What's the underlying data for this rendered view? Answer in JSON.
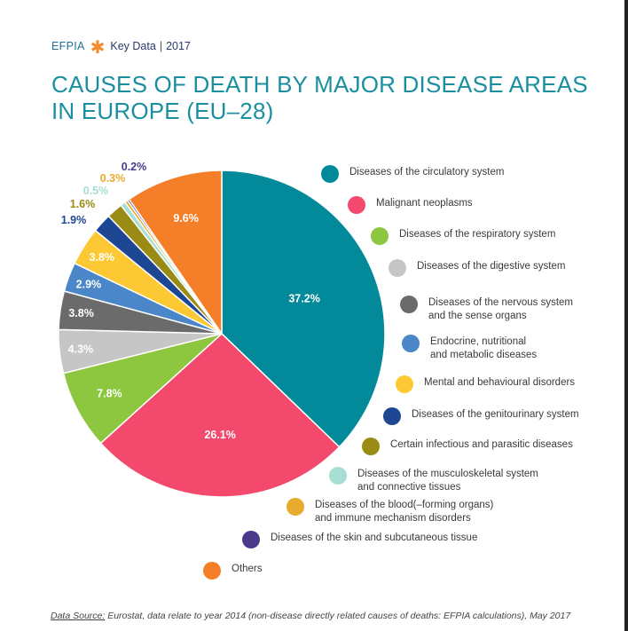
{
  "header": {
    "brand": "EFPIA",
    "publication": "Key Data",
    "separator": "|",
    "year": "2017",
    "accent_color": "#f28c2c"
  },
  "title": {
    "line1": "CAUSES OF DEATH BY MAJOR DISEASE AREAS",
    "line2": "IN EUROPE (EU–28)"
  },
  "chart_data": {
    "type": "pie",
    "title": "CAUSES OF DEATH BY MAJOR DISEASE AREAS IN EUROPE (EU–28)",
    "slices": [
      {
        "label": "Diseases of the circulatory system",
        "value": 37.2,
        "display": "37.2%",
        "color": "#028a9b"
      },
      {
        "label": "Malignant neoplasms",
        "value": 26.1,
        "display": "26.1%",
        "color": "#f2496d"
      },
      {
        "label": "Diseases of the respiratory system",
        "value": 7.8,
        "display": "7.8%",
        "color": "#8dc63f"
      },
      {
        "label": "Diseases of the digestive system",
        "value": 4.3,
        "display": "4.3%",
        "color": "#c6c6c6"
      },
      {
        "label": "Diseases of the nervous system\nand the sense organs",
        "value": 3.8,
        "display": "3.8%",
        "color": "#6b6b6b"
      },
      {
        "label": "Endocrine, nutritional\nand metabolic diseases",
        "value": 2.9,
        "display": "2.9%",
        "color": "#4a86c8"
      },
      {
        "label": "Mental and behavioural disorders",
        "value": 3.8,
        "display": "3.8%",
        "color": "#fcc935"
      },
      {
        "label": "Diseases of the genitourinary system",
        "value": 1.9,
        "display": "1.9%",
        "color": "#1d4693"
      },
      {
        "label": "Certain infectious and parasitic diseases",
        "value": 1.6,
        "display": "1.6%",
        "color": "#998b14"
      },
      {
        "label": "Diseases of the musculoskeletal system\nand connective tissues",
        "value": 0.5,
        "display": "0.5%",
        "color": "#a6e0d4"
      },
      {
        "label": "Diseases of the blood(–forming organs)\nand immune mechanism disorders",
        "value": 0.3,
        "display": "0.3%",
        "color": "#e8ab2d"
      },
      {
        "label": "Diseases of the skin and subcutaneous tissue",
        "value": 0.2,
        "display": "0.2%",
        "color": "#4b3a8c"
      },
      {
        "label": "Others",
        "value": 9.6,
        "display": "9.6%",
        "color": "#f57f29"
      }
    ]
  },
  "source": {
    "label": "Data Source:",
    "text": " Eurostat, data relate to year 2014 (non-disease directly related causes of deaths: EFPIA calculations), May 2017"
  }
}
